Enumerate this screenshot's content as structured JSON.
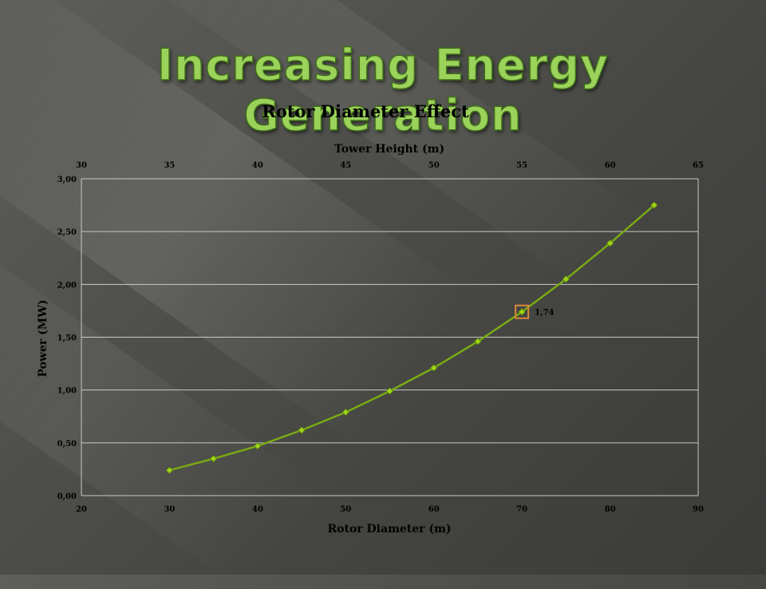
{
  "slide": {
    "title": "Increasing Energy Generation"
  },
  "chart_data": {
    "type": "scatter",
    "title": "Rotor Diameter Effect",
    "xlabel": "Rotor Diameter (m)",
    "ylabel": "Power (MW)",
    "x2label": "Tower Height (m)",
    "xlim": [
      20,
      90
    ],
    "x2lim": [
      30,
      65
    ],
    "ylim": [
      0,
      3
    ],
    "x_ticks": [
      20,
      30,
      40,
      50,
      60,
      70,
      80,
      90
    ],
    "x2_ticks": [
      30,
      35,
      40,
      45,
      50,
      55,
      60,
      65
    ],
    "y_ticks": [
      0,
      0.5,
      1.0,
      1.5,
      2.0,
      2.5,
      3.0
    ],
    "x_tick_labels": [
      "20",
      "30",
      "40",
      "50",
      "60",
      "70",
      "80",
      "90"
    ],
    "x2_tick_labels": [
      "30",
      "35",
      "40",
      "45",
      "50",
      "55",
      "60",
      "65"
    ],
    "y_tick_labels": [
      "0,00",
      "0,50",
      "1,00",
      "1,50",
      "2,00",
      "2,50",
      "3,00"
    ],
    "grid": true,
    "series": [
      {
        "color": "#7aaa14",
        "x": [
          30,
          35,
          40,
          45,
          50,
          55,
          60,
          65,
          70,
          75,
          80,
          85
        ],
        "y": [
          0.24,
          0.35,
          0.47,
          0.62,
          0.79,
          0.99,
          1.21,
          1.46,
          1.74,
          2.05,
          2.39,
          2.75
        ]
      }
    ],
    "annotations": [
      {
        "x": 70,
        "y": 1.74,
        "text": "1,74",
        "highlight_color": "#d98a3a"
      }
    ]
  }
}
